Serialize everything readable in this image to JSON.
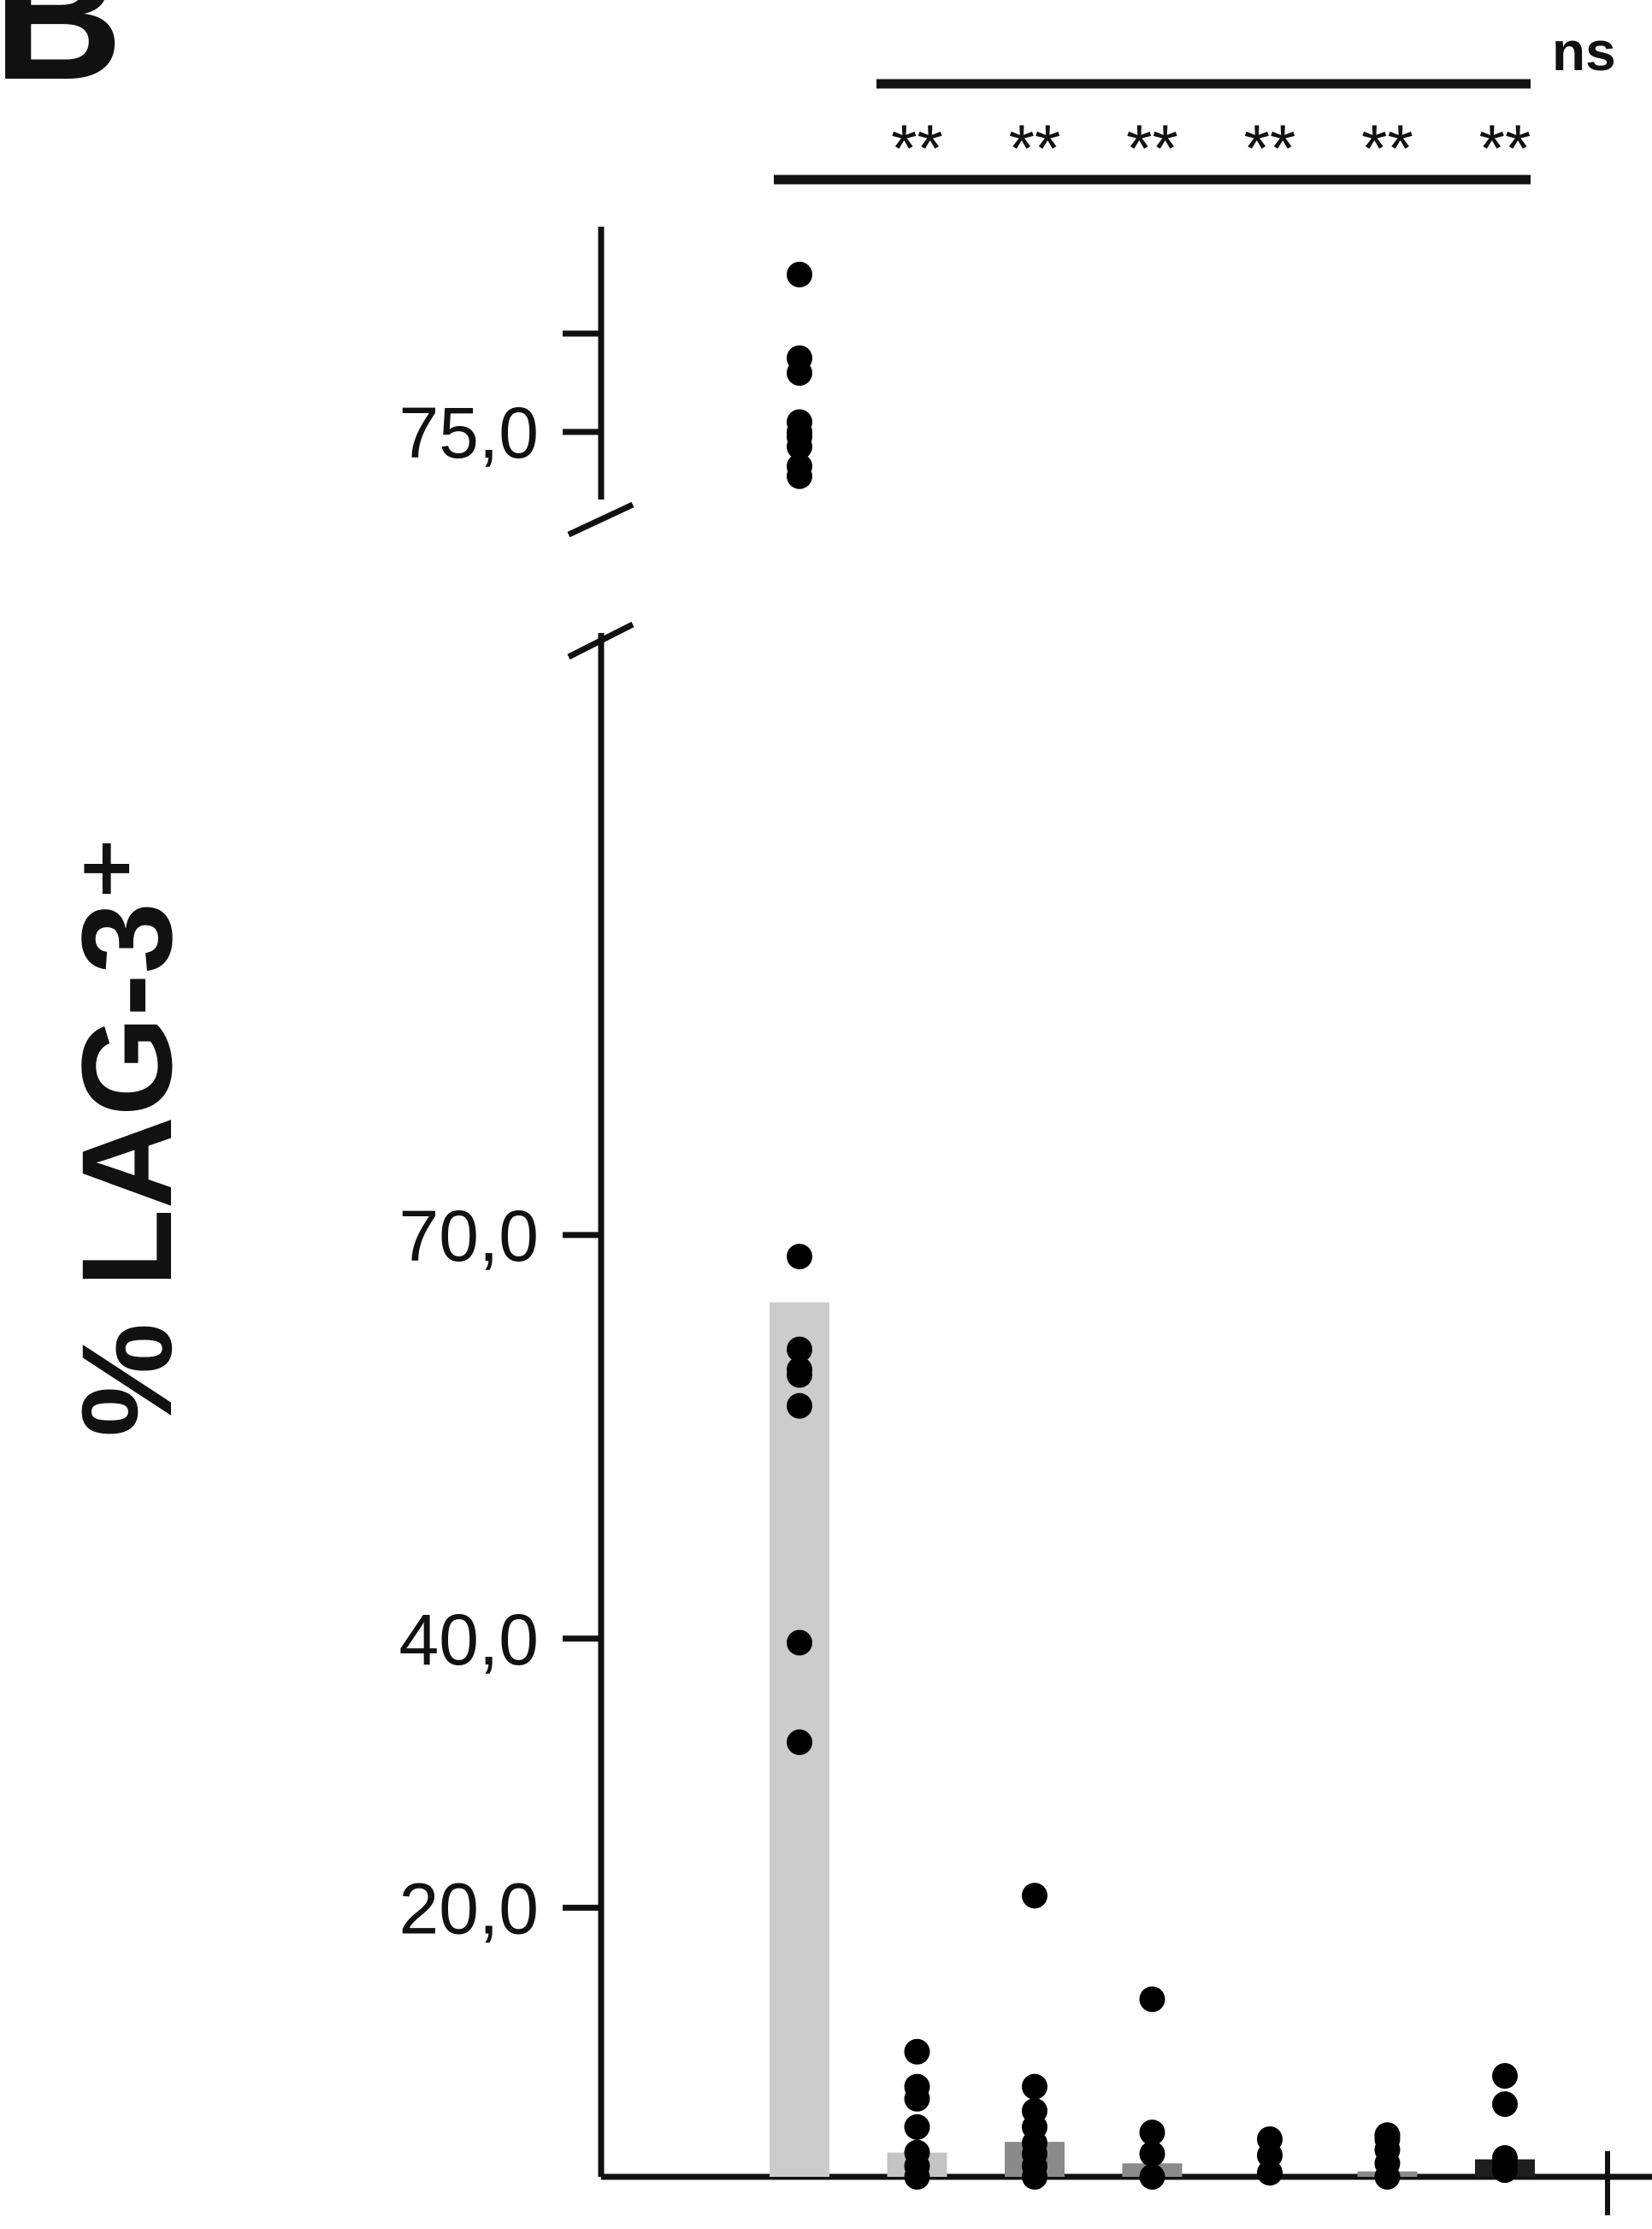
{
  "panel_label": "B",
  "chart_data": {
    "type": "bar",
    "ylabel": "% LAG-3⁺",
    "y_scale": "broken",
    "y_break": [
      70.0,
      73.5
    ],
    "ylim": [
      0,
      78.2
    ],
    "yticks": [
      {
        "value": 20.0,
        "label": "20,0"
      },
      {
        "value": 40.0,
        "label": "40,0"
      },
      {
        "value": 70.0,
        "label": "70,0"
      },
      {
        "value": 75.0,
        "label": "75,0"
      }
    ],
    "minor_yticks": [
      77.0
    ],
    "bar_colors": [
      "#cccccc",
      "#c4c4c4",
      "#8a8a8a",
      "#8a8a8a",
      "#8a8a8a",
      "#8a8a8a",
      "#1e1e1e"
    ],
    "series": [
      {
        "values": [
          65.0,
          1.8,
          2.6,
          1.0,
          0.0,
          0.4,
          1.3
        ]
      }
    ],
    "points": [
      [
        78.2,
        76.5,
        76.2,
        75.2,
        75.0,
        74.9,
        74.7,
        74.3,
        74.1,
        68.4,
        61.5,
        60.0,
        59.6,
        57.3,
        39.7,
        32.3
      ],
      [
        9.3,
        6.7,
        5.8,
        3.7,
        1.8,
        0.8,
        0.0
      ],
      [
        20.9,
        6.7,
        4.9,
        3.7,
        2.5,
        1.7,
        0.8,
        0.0
      ],
      [
        13.2,
        3.3,
        1.7,
        0.0
      ],
      [
        2.8,
        1.6,
        0.3
      ],
      [
        3.1,
        2.8,
        2.0,
        1.0,
        0.0
      ],
      [
        7.5,
        5.4,
        1.4,
        0.9,
        0.5
      ]
    ],
    "annotations": {
      "significance": [
        "**",
        "**",
        "**",
        "**",
        "**",
        "**"
      ],
      "bracket_label": "ns"
    }
  }
}
